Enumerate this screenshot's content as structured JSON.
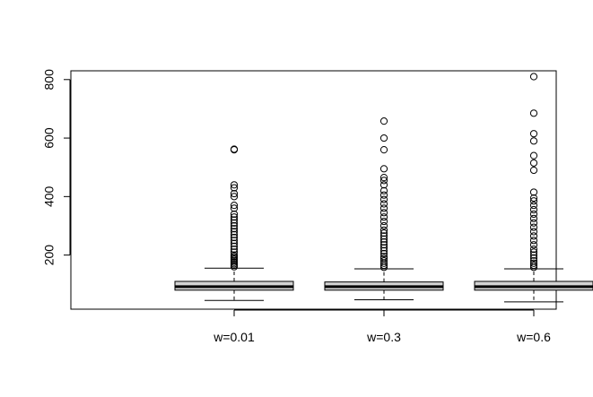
{
  "chart_data": {
    "type": "boxplot",
    "title": "",
    "xlabel": "",
    "ylabel": "",
    "ylim": [
      15,
      830
    ],
    "yticks": [
      200,
      400,
      600,
      800
    ],
    "grid": false,
    "categories": [
      "w=0.01",
      "w=0.3",
      "w=0.6"
    ],
    "boxes": [
      {
        "name": "w=0.01",
        "whisker_low": 45,
        "q1": 80,
        "median": 92,
        "q3": 110,
        "whisker_high": 155,
        "outliers": [
          160,
          165,
          170,
          175,
          180,
          185,
          190,
          195,
          200,
          210,
          220,
          230,
          240,
          250,
          260,
          270,
          280,
          290,
          300,
          310,
          320,
          330,
          340,
          360,
          370,
          400,
          410,
          430,
          440,
          560,
          562
        ]
      },
      {
        "name": "w=0.3",
        "whisker_low": 47,
        "q1": 80,
        "median": 92,
        "q3": 108,
        "whisker_high": 153,
        "outliers": [
          158,
          165,
          172,
          180,
          188,
          195,
          205,
          215,
          225,
          235,
          245,
          255,
          265,
          275,
          285,
          300,
          315,
          330,
          345,
          360,
          375,
          390,
          405,
          420,
          440,
          455,
          465,
          495,
          560,
          600,
          658
        ]
      },
      {
        "name": "w=0.6",
        "whisker_low": 40,
        "q1": 80,
        "median": 92,
        "q3": 110,
        "whisker_high": 153,
        "outliers": [
          158,
          165,
          172,
          180,
          190,
          200,
          210,
          220,
          235,
          250,
          265,
          280,
          295,
          310,
          325,
          340,
          355,
          370,
          385,
          395,
          415,
          490,
          515,
          540,
          590,
          615,
          685,
          810
        ]
      }
    ]
  }
}
